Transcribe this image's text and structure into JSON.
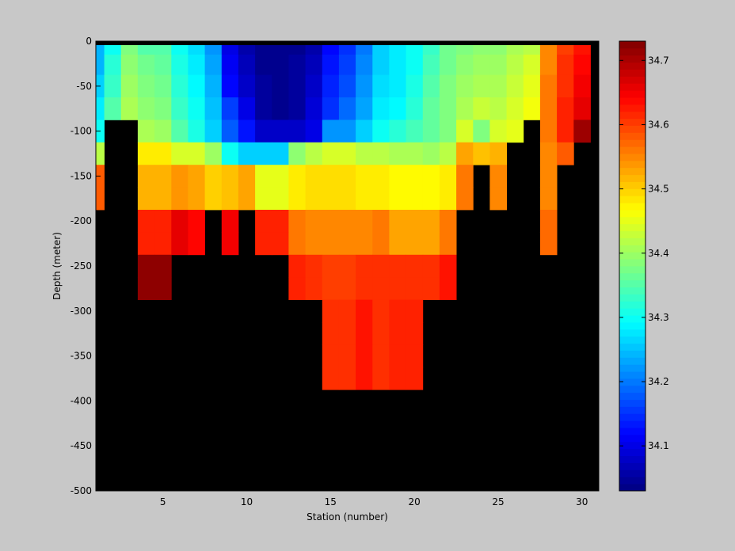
{
  "chart_data": {
    "type": "heatmap",
    "title": "",
    "xlabel": "Station (number)",
    "ylabel": "Depth (meter)",
    "xlim": [
      1,
      31
    ],
    "ylim": [
      -500,
      0
    ],
    "xticks": [
      5,
      10,
      15,
      20,
      25,
      30
    ],
    "yticks": [
      0,
      -50,
      -100,
      -150,
      -200,
      -250,
      -300,
      -350,
      -400,
      -450,
      -500
    ],
    "colorbar": {
      "range": [
        34.03,
        34.73
      ],
      "ticks": [
        34.1,
        34.2,
        34.3,
        34.4,
        34.5,
        34.6,
        34.7
      ],
      "colormap": "jet"
    },
    "no_data_color": "#000000",
    "stations": [
      1,
      2,
      3,
      4,
      5,
      6,
      7,
      8,
      9,
      10,
      11,
      12,
      13,
      14,
      15,
      16,
      17,
      18,
      19,
      20,
      21,
      22,
      23,
      24,
      25,
      26,
      27,
      28,
      29,
      30
    ],
    "depths": [
      -5,
      -25,
      -50,
      -75,
      -100,
      -125,
      -150,
      -175,
      -200,
      -225,
      -250,
      -275,
      -300,
      -325,
      -350,
      -375,
      -400,
      -425,
      -450,
      -475,
      -500
    ],
    "salinity_note": "rows = depths (top to bottom), columns = stations 1..30; null = no data",
    "values": [
      [
        34.24,
        34.3,
        34.38,
        34.35,
        34.35,
        34.3,
        34.27,
        34.22,
        34.1,
        34.06,
        34.04,
        34.04,
        34.04,
        34.06,
        34.12,
        34.15,
        34.2,
        34.26,
        34.28,
        34.3,
        34.33,
        34.37,
        34.38,
        34.39,
        34.39,
        34.41,
        34.42,
        34.55,
        34.6,
        34.63
      ],
      [
        34.24,
        34.32,
        34.39,
        34.37,
        34.36,
        34.31,
        34.28,
        34.23,
        34.11,
        34.07,
        34.04,
        34.04,
        34.05,
        34.07,
        34.13,
        34.16,
        34.21,
        34.26,
        34.28,
        34.3,
        34.34,
        34.37,
        34.39,
        34.4,
        34.4,
        34.42,
        34.44,
        34.55,
        34.61,
        34.64
      ],
      [
        34.26,
        34.33,
        34.4,
        34.38,
        34.37,
        34.32,
        34.29,
        34.24,
        34.12,
        34.08,
        34.05,
        34.04,
        34.05,
        34.08,
        34.14,
        34.17,
        34.22,
        34.27,
        34.28,
        34.31,
        34.35,
        34.38,
        34.4,
        34.41,
        34.41,
        34.43,
        34.45,
        34.56,
        34.61,
        34.65
      ],
      [
        34.28,
        34.35,
        34.41,
        34.39,
        34.38,
        34.33,
        34.3,
        34.25,
        34.16,
        34.1,
        34.05,
        34.04,
        34.05,
        34.09,
        34.15,
        34.19,
        34.23,
        34.28,
        34.29,
        34.32,
        34.36,
        34.38,
        34.41,
        34.43,
        34.42,
        34.44,
        34.46,
        34.56,
        34.62,
        34.66
      ],
      [
        34.3,
        null,
        null,
        34.41,
        34.4,
        34.35,
        34.31,
        34.26,
        34.18,
        34.13,
        34.08,
        34.08,
        34.08,
        34.1,
        34.22,
        34.22,
        34.26,
        34.3,
        34.32,
        34.34,
        34.36,
        34.38,
        34.44,
        34.38,
        34.44,
        34.45,
        null,
        34.56,
        34.62,
        34.71
      ],
      [
        34.42,
        null,
        null,
        34.48,
        34.48,
        34.44,
        34.44,
        34.4,
        34.3,
        34.26,
        34.26,
        34.26,
        34.39,
        34.42,
        34.44,
        34.44,
        34.42,
        34.42,
        34.41,
        34.41,
        34.4,
        34.42,
        34.53,
        34.51,
        34.52,
        null,
        null,
        34.55,
        34.58,
        null
      ],
      [
        34.58,
        null,
        null,
        34.52,
        34.52,
        34.54,
        34.53,
        34.5,
        34.51,
        34.53,
        34.45,
        34.45,
        34.48,
        34.49,
        34.49,
        34.49,
        34.48,
        34.48,
        34.47,
        34.47,
        34.47,
        34.48,
        34.56,
        null,
        34.55,
        null,
        null,
        34.55,
        null,
        null
      ],
      [
        34.58,
        null,
        null,
        34.52,
        34.52,
        34.54,
        34.53,
        34.5,
        34.51,
        34.53,
        34.45,
        34.45,
        34.48,
        34.49,
        34.49,
        34.49,
        34.48,
        34.48,
        34.47,
        34.47,
        34.47,
        34.48,
        34.56,
        null,
        34.55,
        null,
        null,
        34.55,
        null,
        null
      ],
      [
        null,
        null,
        null,
        34.62,
        34.62,
        34.66,
        34.64,
        null,
        34.65,
        null,
        34.62,
        34.62,
        34.56,
        34.55,
        34.55,
        34.55,
        34.55,
        34.56,
        34.53,
        34.53,
        34.53,
        34.56,
        null,
        null,
        null,
        null,
        null,
        34.57,
        null,
        null
      ],
      [
        null,
        null,
        null,
        34.62,
        34.62,
        34.66,
        34.64,
        null,
        34.65,
        null,
        34.62,
        34.62,
        34.56,
        34.55,
        34.55,
        34.55,
        34.55,
        34.56,
        34.53,
        34.53,
        34.53,
        34.56,
        null,
        null,
        null,
        null,
        null,
        34.57,
        null,
        null
      ],
      [
        null,
        null,
        null,
        34.72,
        34.72,
        null,
        null,
        null,
        null,
        null,
        null,
        null,
        34.62,
        34.61,
        34.6,
        34.6,
        34.61,
        34.61,
        34.61,
        34.61,
        34.61,
        34.63,
        null,
        null,
        null,
        null,
        null,
        null,
        null,
        null
      ],
      [
        null,
        null,
        null,
        34.72,
        34.72,
        null,
        null,
        null,
        null,
        null,
        null,
        null,
        34.62,
        34.61,
        34.6,
        34.6,
        34.61,
        34.61,
        34.61,
        34.61,
        34.61,
        34.63,
        null,
        null,
        null,
        null,
        null,
        null,
        null,
        null
      ],
      [
        null,
        null,
        null,
        null,
        null,
        null,
        null,
        null,
        null,
        null,
        null,
        null,
        null,
        null,
        34.61,
        34.61,
        34.63,
        34.61,
        34.62,
        34.62,
        null,
        null,
        null,
        null,
        null,
        null,
        null,
        null,
        null,
        null
      ],
      [
        null,
        null,
        null,
        null,
        null,
        null,
        null,
        null,
        null,
        null,
        null,
        null,
        null,
        null,
        34.61,
        34.61,
        34.63,
        34.61,
        34.62,
        34.62,
        null,
        null,
        null,
        null,
        null,
        null,
        null,
        null,
        null,
        null
      ],
      [
        null,
        null,
        null,
        null,
        null,
        null,
        null,
        null,
        null,
        null,
        null,
        null,
        null,
        null,
        34.61,
        34.61,
        34.63,
        34.61,
        34.62,
        34.62,
        null,
        null,
        null,
        null,
        null,
        null,
        null,
        null,
        null,
        null
      ],
      [
        null,
        null,
        null,
        null,
        null,
        null,
        null,
        null,
        null,
        null,
        null,
        null,
        null,
        null,
        34.61,
        34.61,
        34.63,
        34.61,
        34.62,
        34.62,
        null,
        null,
        null,
        null,
        null,
        null,
        null,
        null,
        null,
        null
      ],
      [
        null,
        null,
        null,
        null,
        null,
        null,
        null,
        null,
        null,
        null,
        null,
        null,
        null,
        null,
        null,
        null,
        null,
        null,
        null,
        null,
        null,
        null,
        null,
        null,
        null,
        null,
        null,
        null,
        null,
        null
      ],
      [
        null,
        null,
        null,
        null,
        null,
        null,
        null,
        null,
        null,
        null,
        null,
        null,
        null,
        null,
        null,
        null,
        null,
        null,
        null,
        null,
        null,
        null,
        null,
        null,
        null,
        null,
        null,
        null,
        null,
        null
      ],
      [
        null,
        null,
        null,
        null,
        null,
        null,
        null,
        null,
        null,
        null,
        null,
        null,
        null,
        null,
        null,
        null,
        null,
        null,
        null,
        null,
        null,
        null,
        null,
        null,
        null,
        null,
        null,
        null,
        null,
        null
      ],
      [
        null,
        null,
        null,
        null,
        null,
        null,
        null,
        null,
        null,
        null,
        null,
        null,
        null,
        null,
        null,
        null,
        null,
        null,
        null,
        null,
        null,
        null,
        null,
        null,
        null,
        null,
        null,
        null,
        null,
        null
      ],
      [
        null,
        null,
        null,
        null,
        null,
        null,
        null,
        null,
        null,
        null,
        null,
        null,
        null,
        null,
        null,
        null,
        null,
        null,
        null,
        null,
        null,
        null,
        null,
        null,
        null,
        null,
        null,
        null,
        null,
        null
      ]
    ]
  }
}
